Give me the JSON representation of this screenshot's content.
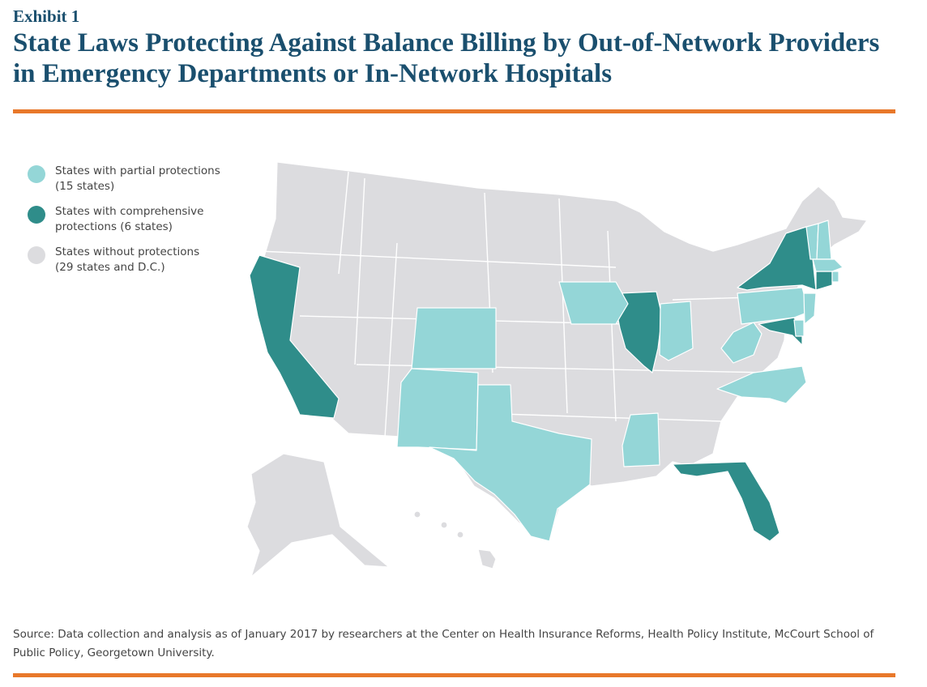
{
  "header": {
    "exhibit": "Exhibit 1",
    "title": "State Laws Protecting Against Balance Billing by Out-of-Network Providers in Emergency Departments or In-Network Hospitals"
  },
  "colors": {
    "accent_rule": "#e8782a",
    "title": "#1a4f6e",
    "partial": "#94d6d7",
    "comprehensive": "#2f8d8a",
    "none": "#dcdcdf"
  },
  "legend": {
    "items": [
      {
        "key": "partial",
        "line1": "States with partial protections",
        "line2": "(15 states)"
      },
      {
        "key": "comprehensive",
        "line1": "States with comprehensive",
        "line2": "protections (6 states)"
      },
      {
        "key": "none",
        "line1": "States without protections",
        "line2": "(29 states and D.C.)"
      }
    ]
  },
  "map_data": {
    "type": "choropleth",
    "region": "United States",
    "categories": {
      "partial": [
        "Colorado",
        "New Mexico",
        "Texas",
        "Iowa",
        "Indiana",
        "Mississippi",
        "West Virginia",
        "Pennsylvania",
        "New Jersey",
        "Delaware",
        "North Carolina",
        "Vermont",
        "New Hampshire",
        "Massachusetts",
        "Rhode Island"
      ],
      "comprehensive": [
        "California",
        "Illinois",
        "New York",
        "Connecticut",
        "Maryland",
        "Florida"
      ]
    }
  },
  "source": {
    "text": "Source: Data collection and analysis as of January 2017 by researchers at the Center on Health Insurance Reforms, Health Policy Institute, McCourt School of Public Policy, Georgetown University."
  }
}
